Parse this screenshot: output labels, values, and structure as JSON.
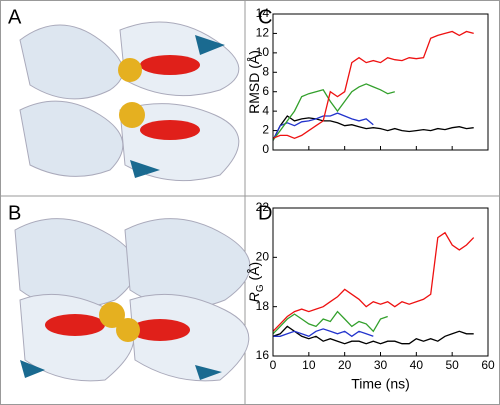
{
  "panels": [
    "A",
    "B"
  ],
  "chart_data": [
    {
      "type": "line",
      "panel": "C",
      "ylabel": [
        "RMSD (Å)"
      ],
      "x": [
        0,
        2,
        4,
        6,
        8,
        10,
        12,
        14,
        16,
        18,
        20,
        22,
        24,
        26,
        28,
        30,
        32,
        34,
        36,
        38,
        40,
        42,
        44,
        46,
        48,
        50,
        52,
        54,
        56
      ],
      "xlim": [
        0,
        60
      ],
      "xticks": [
        0,
        10,
        20,
        30,
        40,
        50,
        60
      ],
      "show_xtick_labels": false,
      "ylim": [
        0,
        14
      ],
      "yticks": [
        0,
        2,
        4,
        6,
        8,
        10,
        12,
        14
      ],
      "series": [
        {
          "color": "#000000",
          "values": [
            1,
            2.5,
            3.5,
            3,
            3.2,
            3.3,
            3.2,
            3,
            3,
            2.8,
            2.5,
            2.6,
            2.4,
            2.2,
            2.3,
            2.2,
            2.0,
            2.2,
            2.0,
            1.9,
            2.0,
            2.1,
            2.0,
            2.2,
            2.1,
            2.3,
            2.4,
            2.2,
            2.3
          ]
        },
        {
          "color": "#2233cc",
          "values": [
            1,
            2.5,
            2.8,
            2.5,
            2.9,
            3,
            3.2,
            3.5,
            3.5,
            3.8,
            3.5,
            3.2,
            3.0,
            3.2,
            2.6,
            null,
            null,
            null,
            null,
            null,
            null,
            null,
            null,
            null,
            null,
            null,
            null,
            null,
            null
          ]
        },
        {
          "color": "#33a02c",
          "values": [
            1,
            2,
            3,
            4,
            5.5,
            5.8,
            6,
            6.2,
            5,
            4,
            5,
            6,
            6.5,
            6.8,
            6.5,
            6.2,
            5.8,
            6,
            null,
            null,
            null,
            null,
            null,
            null,
            null,
            null,
            null,
            null,
            null
          ]
        },
        {
          "color": "#ee1111",
          "values": [
            1.2,
            1.5,
            1.5,
            1.2,
            1.5,
            2,
            2.5,
            3,
            6,
            5.5,
            6,
            9,
            9.5,
            9,
            9.2,
            9,
            9.5,
            9.3,
            9.2,
            9.5,
            9.4,
            9.5,
            11.5,
            11.8,
            12,
            12.2,
            11.8,
            12.2,
            12
          ]
        }
      ]
    },
    {
      "type": "line",
      "panel": "D",
      "ylabel": [
        "R",
        "G",
        " (Å)"
      ],
      "xlabel": "Time (ns)",
      "x": [
        0,
        2,
        4,
        6,
        8,
        10,
        12,
        14,
        16,
        18,
        20,
        22,
        24,
        26,
        28,
        30,
        32,
        34,
        36,
        38,
        40,
        42,
        44,
        46,
        48,
        50,
        52,
        54,
        56
      ],
      "xlim": [
        0,
        60
      ],
      "xticks": [
        0,
        10,
        20,
        30,
        40,
        50,
        60
      ],
      "show_xtick_labels": true,
      "ylim": [
        16,
        22
      ],
      "yticks": [
        16,
        18,
        20,
        22
      ],
      "series": [
        {
          "color": "#000000",
          "values": [
            16.8,
            16.9,
            17.2,
            17.0,
            16.8,
            16.7,
            16.8,
            16.6,
            16.7,
            16.6,
            16.5,
            16.6,
            16.6,
            16.5,
            16.6,
            16.5,
            16.6,
            16.6,
            16.5,
            16.5,
            16.7,
            16.6,
            16.7,
            16.6,
            16.8,
            16.9,
            17.0,
            16.9,
            16.9
          ]
        },
        {
          "color": "#2233cc",
          "values": [
            16.8,
            16.8,
            16.9,
            17.0,
            16.9,
            16.8,
            17.0,
            17.1,
            17.0,
            16.9,
            17.0,
            16.8,
            17.0,
            16.9,
            16.8,
            null,
            null,
            null,
            null,
            null,
            null,
            null,
            null,
            null,
            null,
            null,
            null,
            null,
            null
          ]
        },
        {
          "color": "#33a02c",
          "values": [
            16.9,
            17.2,
            17.5,
            17.7,
            17.5,
            17.3,
            17.2,
            17.5,
            17.4,
            17.8,
            17.5,
            17.2,
            17.4,
            17.3,
            17.0,
            17.5,
            17.6,
            null,
            null,
            null,
            null,
            null,
            null,
            null,
            null,
            null,
            null,
            null,
            null
          ]
        },
        {
          "color": "#ee1111",
          "values": [
            17.0,
            17.3,
            17.6,
            17.8,
            17.9,
            17.8,
            17.9,
            18.0,
            18.2,
            18.4,
            18.7,
            18.5,
            18.3,
            18.0,
            18.2,
            18.1,
            18.2,
            18.0,
            18.2,
            18.1,
            18.2,
            18.3,
            18.5,
            20.8,
            21.0,
            20.5,
            20.3,
            20.5,
            20.8
          ]
        }
      ]
    }
  ]
}
